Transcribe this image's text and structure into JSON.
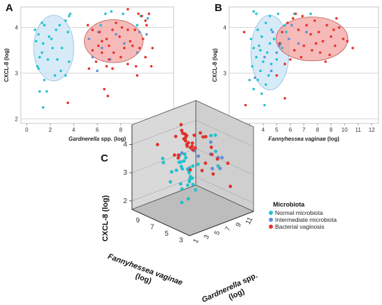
{
  "colors": {
    "normal": "#1fc3d1",
    "intermediate": "#5c8fe0",
    "bv": "#e8302a",
    "ellipse_blue": "#cfe6f6",
    "ellipse_red": "#f4a9a6"
  },
  "chart_data": [
    {
      "panel": "A",
      "type": "scatter",
      "xlabel_italic": "Gardnerella",
      "xlabel_rest": " spp. (log)",
      "ylabel": "CXCL-8 (log)",
      "xlim": [
        -0.5,
        12.5
      ],
      "ylim": [
        1.9,
        4.45
      ],
      "xticks": [
        0,
        2,
        4,
        6,
        8,
        10,
        12
      ],
      "yticks": [
        2,
        3,
        4
      ],
      "ellipses": [
        {
          "group": "normal",
          "cx": 2.3,
          "cy": 3.55,
          "rx": 1.7,
          "ry": 0.72
        },
        {
          "group": "bv",
          "cx": 7.4,
          "cy": 3.7,
          "rx": 2.5,
          "ry": 0.47
        }
      ],
      "series": [
        {
          "group": "normal",
          "points": [
            [
              0.7,
              3.95
            ],
            [
              1.3,
              4.1
            ],
            [
              1.5,
              4.05
            ],
            [
              1.0,
              3.85
            ],
            [
              0.8,
              3.7
            ],
            [
              1.9,
              3.8
            ],
            [
              1.4,
              3.65
            ],
            [
              2.2,
              3.55
            ],
            [
              1.3,
              3.45
            ],
            [
              1.1,
              3.35
            ],
            [
              1.8,
              3.3
            ],
            [
              2.6,
              3.3
            ],
            [
              3.0,
              3.55
            ],
            [
              3.6,
              4.25
            ],
            [
              3.3,
              4.15
            ],
            [
              3.5,
              3.9
            ],
            [
              2.5,
              3.95
            ],
            [
              2.1,
              3.75
            ],
            [
              1.0,
              3.1
            ],
            [
              2.9,
              3.05
            ],
            [
              3.3,
              2.95
            ],
            [
              3.6,
              3.25
            ],
            [
              1.5,
              2.85
            ],
            [
              1.1,
              2.6
            ],
            [
              1.7,
              2.6
            ],
            [
              1.4,
              2.25
            ],
            [
              0.9,
              3.15
            ],
            [
              2.4,
              2.95
            ],
            [
              3.7,
              4.3
            ],
            [
              2.8,
              4.05
            ],
            [
              6.7,
              4.3
            ],
            [
              7.2,
              4.35
            ],
            [
              8.2,
              4.3
            ],
            [
              9.7,
              4.25
            ],
            [
              10.3,
              4.2
            ],
            [
              6.3,
              4.05
            ],
            [
              9.4,
              4.05
            ]
          ]
        },
        {
          "group": "intermediate",
          "points": [
            [
              5.3,
              3.75
            ],
            [
              6.1,
              3.9
            ],
            [
              6.4,
              3.55
            ],
            [
              7.1,
              3.3
            ],
            [
              9.4,
              3.45
            ],
            [
              10.2,
              3.85
            ],
            [
              7.6,
              3.85
            ],
            [
              8.3,
              3.65
            ],
            [
              5.6,
              3.35
            ],
            [
              9.6,
              3.9
            ],
            [
              6.0,
              3.05
            ]
          ]
        },
        {
          "group": "bv",
          "points": [
            [
              5.2,
              4.05
            ],
            [
              5.6,
              3.95
            ],
            [
              6.2,
              3.9
            ],
            [
              6.4,
              3.7
            ],
            [
              6.1,
              3.6
            ],
            [
              6.8,
              3.75
            ],
            [
              7.0,
              3.6
            ],
            [
              7.3,
              3.95
            ],
            [
              7.6,
              4.1
            ],
            [
              7.9,
              3.8
            ],
            [
              8.3,
              3.55
            ],
            [
              8.6,
              3.95
            ],
            [
              8.8,
              3.7
            ],
            [
              9.0,
              3.6
            ],
            [
              9.2,
              3.95
            ],
            [
              9.5,
              4.3
            ],
            [
              9.8,
              4.25
            ],
            [
              10.1,
              4.15
            ],
            [
              10.4,
              4.3
            ],
            [
              10.2,
              4.05
            ],
            [
              9.9,
              3.75
            ],
            [
              9.6,
              3.55
            ],
            [
              10.1,
              3.35
            ],
            [
              6.4,
              3.45
            ],
            [
              7.0,
              3.3
            ],
            [
              7.4,
              3.45
            ],
            [
              8.0,
              3.35
            ],
            [
              8.6,
              3.2
            ],
            [
              9.3,
              3.15
            ],
            [
              5.6,
              3.5
            ],
            [
              5.9,
              3.25
            ],
            [
              6.8,
              3.15
            ],
            [
              7.3,
              3.1
            ],
            [
              6.6,
              2.65
            ],
            [
              6.9,
              2.5
            ],
            [
              8.6,
              4.4
            ],
            [
              10.7,
              3.55
            ],
            [
              10.6,
              3.15
            ],
            [
              3.5,
              2.35
            ],
            [
              5.3,
              3.1
            ],
            [
              8.1,
              4.0
            ],
            [
              9.4,
              2.95
            ]
          ]
        }
      ]
    },
    {
      "panel": "B",
      "type": "scatter",
      "xlabel_italic": "Fannyhessea vaginae",
      "xlabel_rest": " (log)",
      "ylabel": "CXCL-8 (log)",
      "xlim": [
        1.5,
        12.5
      ],
      "ylim": [
        1.9,
        4.45
      ],
      "xticks": [
        2,
        3,
        4,
        5,
        6,
        7,
        8,
        9,
        10,
        11,
        12
      ],
      "yticks": [
        2,
        3,
        4
      ],
      "ellipses": [
        {
          "group": "normal",
          "cx": 4.5,
          "cy": 3.45,
          "rx": 1.4,
          "ry": 0.82
        },
        {
          "group": "bv",
          "cx": 7.6,
          "cy": 3.75,
          "rx": 2.65,
          "ry": 0.48
        }
      ],
      "series": [
        {
          "group": "normal",
          "points": [
            [
              3.3,
              4.35
            ],
            [
              3.5,
              4.3
            ],
            [
              4.5,
              4.25
            ],
            [
              4.2,
              4.1
            ],
            [
              3.6,
              3.95
            ],
            [
              4.6,
              3.95
            ],
            [
              3.1,
              3.75
            ],
            [
              3.9,
              3.8
            ],
            [
              4.8,
              3.75
            ],
            [
              5.3,
              3.65
            ],
            [
              3.3,
              3.55
            ],
            [
              3.8,
              3.5
            ],
            [
              4.3,
              3.45
            ],
            [
              3.5,
              3.35
            ],
            [
              4.0,
              3.25
            ],
            [
              4.6,
              3.2
            ],
            [
              5.0,
              3.3
            ],
            [
              3.2,
              3.15
            ],
            [
              3.8,
              3.05
            ],
            [
              4.4,
              2.95
            ],
            [
              3.6,
              2.85
            ],
            [
              4.2,
              2.75
            ],
            [
              3.3,
              2.65
            ],
            [
              3.9,
              2.55
            ],
            [
              4.5,
              3.65
            ],
            [
              5.7,
              3.9
            ],
            [
              6.3,
              4.3
            ],
            [
              7.5,
              4.3
            ],
            [
              5.4,
              3.55
            ],
            [
              4.1,
              2.3
            ],
            [
              3.0,
              2.85
            ],
            [
              3.7,
              3.6
            ],
            [
              5.1,
              4.3
            ],
            [
              5.6,
              4.05
            ]
          ]
        },
        {
          "group": "intermediate",
          "points": [
            [
              4.7,
              3.9
            ],
            [
              5.9,
              3.75
            ],
            [
              6.1,
              4.05
            ],
            [
              4.1,
              3.35
            ],
            [
              5.0,
              3.45
            ],
            [
              6.6,
              3.65
            ],
            [
              3.4,
              2.9
            ],
            [
              5.2,
              3.6
            ],
            [
              7.2,
              3.9
            ],
            [
              4.6,
              3.05
            ]
          ]
        },
        {
          "group": "bv",
          "points": [
            [
              5.4,
              3.9
            ],
            [
              5.8,
              4.1
            ],
            [
              6.2,
              4.2
            ],
            [
              6.6,
              3.95
            ],
            [
              6.9,
              4.25
            ],
            [
              7.2,
              4.05
            ],
            [
              7.5,
              3.85
            ],
            [
              7.8,
              4.15
            ],
            [
              8.1,
              3.9
            ],
            [
              8.4,
              3.7
            ],
            [
              8.7,
              4.05
            ],
            [
              9.0,
              3.8
            ],
            [
              9.3,
              3.6
            ],
            [
              9.6,
              4.0
            ],
            [
              9.9,
              3.75
            ],
            [
              10.2,
              3.7
            ],
            [
              7.0,
              3.6
            ],
            [
              7.6,
              3.5
            ],
            [
              8.2,
              3.45
            ],
            [
              8.9,
              3.4
            ],
            [
              6.3,
              3.5
            ],
            [
              6.0,
              3.3
            ],
            [
              5.6,
              3.2
            ],
            [
              5.0,
              2.95
            ],
            [
              6.4,
              4.3
            ],
            [
              9.4,
              4.2
            ],
            [
              2.6,
              3.9
            ],
            [
              2.7,
              2.3
            ],
            [
              5.6,
              2.45
            ],
            [
              10.6,
              3.55
            ],
            [
              7.9,
              3.65
            ],
            [
              8.6,
              3.25
            ],
            [
              5.2,
              3.65
            ],
            [
              6.8,
              3.35
            ],
            [
              9.2,
              3.95
            ]
          ]
        }
      ]
    },
    {
      "panel": "C",
      "type": "scatter3d",
      "xlabel_italic": "Fannyhessea vaginae",
      "xlabel_rest": "(log)",
      "zlabel_italic": "Gardnerella",
      "zlabel_rest": " spp.",
      "zlabel_second": "(log)",
      "ylabel": "CXCL-8 (log)",
      "xticks": [
        3,
        5,
        7,
        9
      ],
      "zticks": [
        1,
        3,
        5,
        7,
        9,
        11
      ],
      "yticks": [
        2,
        3,
        4
      ],
      "legend": {
        "title": "Microbiota",
        "entries": [
          {
            "group": "normal",
            "label": "Normal microbiota"
          },
          {
            "group": "intermediate",
            "label": "Intermediate microbiota"
          },
          {
            "group": "bv",
            "label": "Bacterial vaginosis"
          }
        ]
      }
    }
  ]
}
